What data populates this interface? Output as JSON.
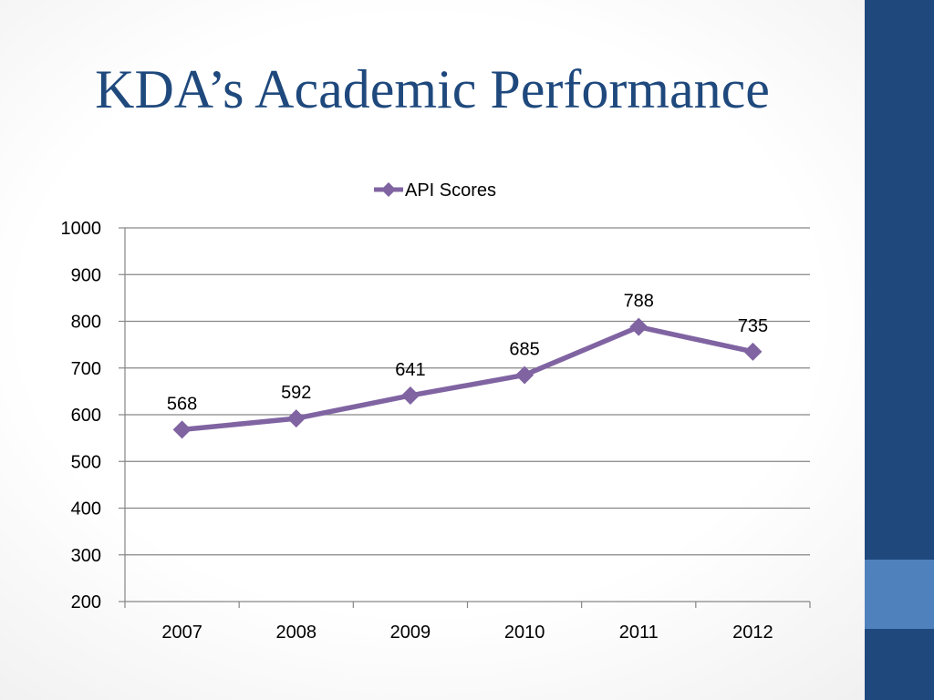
{
  "slide": {
    "title": "KDA’s Academic Performance"
  },
  "colors": {
    "title": "#1f497d",
    "sidebar": "#1f497d",
    "sidebar_accent": "#4f81bd",
    "series": "#8064a2",
    "grid": "#868686"
  },
  "chart_data": {
    "type": "line",
    "categories": [
      "2007",
      "2008",
      "2009",
      "2010",
      "2011",
      "2012"
    ],
    "series": [
      {
        "name": "API Scores",
        "values": [
          568,
          592,
          641,
          685,
          788,
          735
        ],
        "marker": "diamond"
      }
    ],
    "ylim": [
      200,
      1000
    ],
    "yticks": [
      200,
      300,
      400,
      500,
      600,
      700,
      800,
      900,
      1000
    ],
    "data_labels": true,
    "grid": true,
    "legend": "top"
  }
}
